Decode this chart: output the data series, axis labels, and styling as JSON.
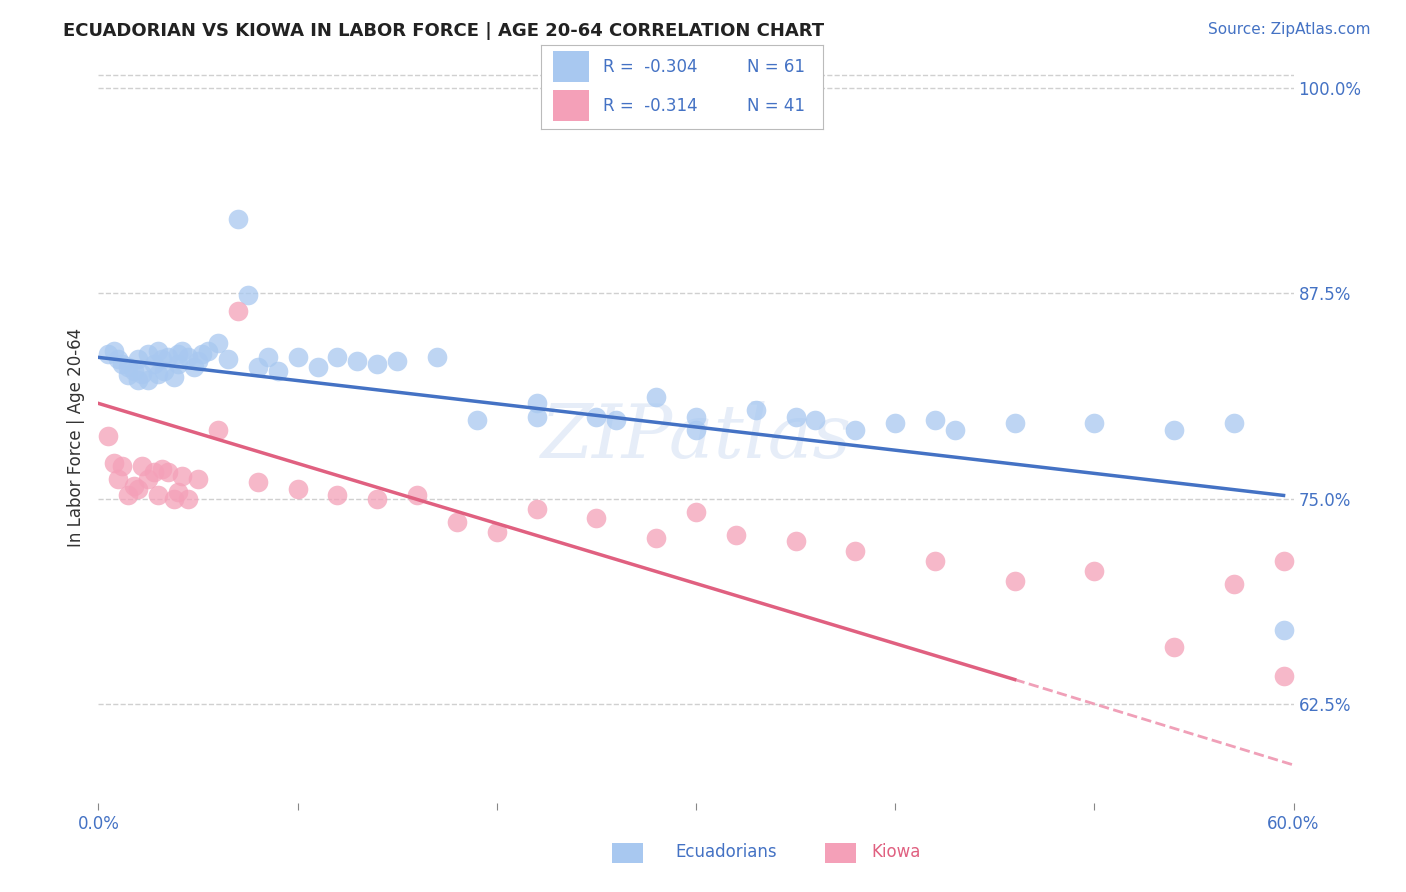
{
  "title": "ECUADORIAN VS KIOWA IN LABOR FORCE | AGE 20-64 CORRELATION CHART",
  "source": "Source: ZipAtlas.com",
  "ylabel": "In Labor Force | Age 20-64",
  "xlim": [
    0.0,
    0.6
  ],
  "ylim": [
    0.565,
    1.01
  ],
  "yticks_right": [
    0.625,
    0.75,
    0.875,
    1.0
  ],
  "yticklabels_right": [
    "62.5%",
    "75.0%",
    "87.5%",
    "100.0%"
  ],
  "blue_color": "#A8C8F0",
  "pink_color": "#F4A0B8",
  "blue_line_color": "#4472C4",
  "pink_line_color": "#E06080",
  "dash_color": "#F0A0B8",
  "watermark": "ZIPatlas",
  "legend_R_blue": "-0.304",
  "legend_N_blue": "61",
  "legend_R_pink": "-0.314",
  "legend_N_pink": "41",
  "blue_scatter_x": [
    0.005,
    0.008,
    0.01,
    0.012,
    0.015,
    0.015,
    0.018,
    0.02,
    0.02,
    0.022,
    0.025,
    0.025,
    0.028,
    0.03,
    0.03,
    0.032,
    0.033,
    0.035,
    0.038,
    0.04,
    0.04,
    0.042,
    0.045,
    0.048,
    0.05,
    0.052,
    0.055,
    0.06,
    0.065,
    0.07,
    0.075,
    0.08,
    0.085,
    0.09,
    0.1,
    0.11,
    0.12,
    0.13,
    0.14,
    0.15,
    0.17,
    0.19,
    0.22,
    0.25,
    0.28,
    0.3,
    0.33,
    0.36,
    0.4,
    0.43,
    0.46,
    0.5,
    0.54,
    0.57,
    0.3,
    0.35,
    0.38,
    0.42,
    0.26,
    0.22,
    0.595
  ],
  "blue_scatter_y": [
    0.838,
    0.84,
    0.835,
    0.832,
    0.825,
    0.83,
    0.828,
    0.822,
    0.835,
    0.826,
    0.838,
    0.822,
    0.832,
    0.84,
    0.826,
    0.835,
    0.828,
    0.836,
    0.824,
    0.838,
    0.832,
    0.84,
    0.836,
    0.83,
    0.834,
    0.838,
    0.84,
    0.845,
    0.835,
    0.92,
    0.874,
    0.83,
    0.836,
    0.828,
    0.836,
    0.83,
    0.836,
    0.834,
    0.832,
    0.834,
    0.836,
    0.798,
    0.808,
    0.8,
    0.812,
    0.8,
    0.804,
    0.798,
    0.796,
    0.792,
    0.796,
    0.796,
    0.792,
    0.796,
    0.792,
    0.8,
    0.792,
    0.798,
    0.798,
    0.8,
    0.67
  ],
  "pink_scatter_x": [
    0.005,
    0.008,
    0.01,
    0.012,
    0.015,
    0.018,
    0.02,
    0.022,
    0.025,
    0.028,
    0.03,
    0.032,
    0.035,
    0.038,
    0.04,
    0.042,
    0.045,
    0.05,
    0.06,
    0.07,
    0.08,
    0.1,
    0.12,
    0.14,
    0.16,
    0.18,
    0.2,
    0.22,
    0.25,
    0.28,
    0.3,
    0.32,
    0.35,
    0.38,
    0.42,
    0.46,
    0.5,
    0.54,
    0.57,
    0.595,
    0.595
  ],
  "pink_scatter_y": [
    0.788,
    0.772,
    0.762,
    0.77,
    0.752,
    0.758,
    0.756,
    0.77,
    0.762,
    0.766,
    0.752,
    0.768,
    0.766,
    0.75,
    0.754,
    0.764,
    0.75,
    0.762,
    0.792,
    0.864,
    0.76,
    0.756,
    0.752,
    0.75,
    0.752,
    0.736,
    0.73,
    0.744,
    0.738,
    0.726,
    0.742,
    0.728,
    0.724,
    0.718,
    0.712,
    0.7,
    0.706,
    0.66,
    0.698,
    0.642,
    0.712
  ],
  "blue_line_x": [
    0.0,
    0.595
  ],
  "blue_line_y": [
    0.836,
    0.752
  ],
  "pink_line_x": [
    0.0,
    0.46
  ],
  "pink_line_y": [
    0.808,
    0.64
  ],
  "dash_line_x": [
    0.46,
    0.6
  ],
  "dash_line_y": [
    0.64,
    0.588
  ],
  "background_color": "#FFFFFF",
  "grid_color": "#D0D0D0"
}
